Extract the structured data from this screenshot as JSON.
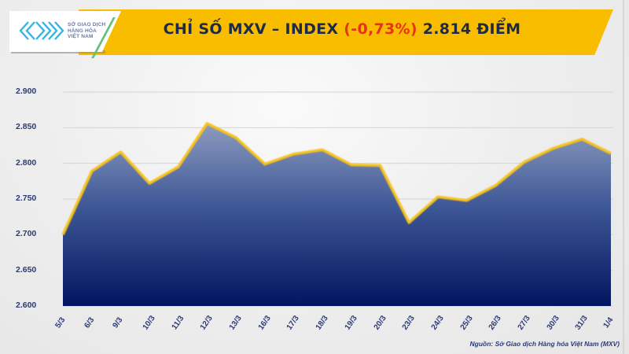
{
  "header": {
    "logo": {
      "icon": "mxv-logo-icon",
      "lines": [
        "SỞ GIAO DỊCH",
        "HÀNG HÓA",
        "VIỆT NAM"
      ]
    },
    "title_prefix": "CHỈ SỐ MXV – INDEX ",
    "title_change": "(-0,73%)",
    "title_suffix": " 2.814 ĐIỂM"
  },
  "source": "Nguồn: Sở Giao dịch Hàng hóa Việt Nam (MXV)",
  "colors": {
    "banner": "#f9bd00",
    "line": "#f6c21a",
    "area_top": "#8c9bbf",
    "area_bottom": "#021560",
    "negative": "#e8331c",
    "axis_text": "#2b3a78"
  },
  "chart_data": {
    "type": "area",
    "title": "CHỈ SỐ MXV – INDEX (-0,73%) 2.814 ĐIỂM",
    "xlabel": "",
    "ylabel": "",
    "categories": [
      "5/3",
      "6/3",
      "9/3",
      "10/3",
      "11/3",
      "12/3",
      "13/3",
      "16/3",
      "17/3",
      "18/3",
      "19/3",
      "20/3",
      "23/3",
      "24/3",
      "25/3",
      "26/3",
      "27/3",
      "30/3",
      "31/3",
      "1/4"
    ],
    "series": [
      {
        "name": "MXV-Index",
        "values": [
          2700,
          2789,
          2816,
          2772,
          2795,
          2856,
          2836,
          2799,
          2813,
          2819,
          2798,
          2797,
          2717,
          2753,
          2748,
          2769,
          2802,
          2821,
          2834,
          2814
        ]
      }
    ],
    "yticks": [
      "2.600",
      "2.650",
      "2.700",
      "2.750",
      "2.800",
      "2.850",
      "2.900"
    ],
    "ylim": [
      2600,
      2900
    ],
    "grid": true,
    "legend": "none"
  }
}
